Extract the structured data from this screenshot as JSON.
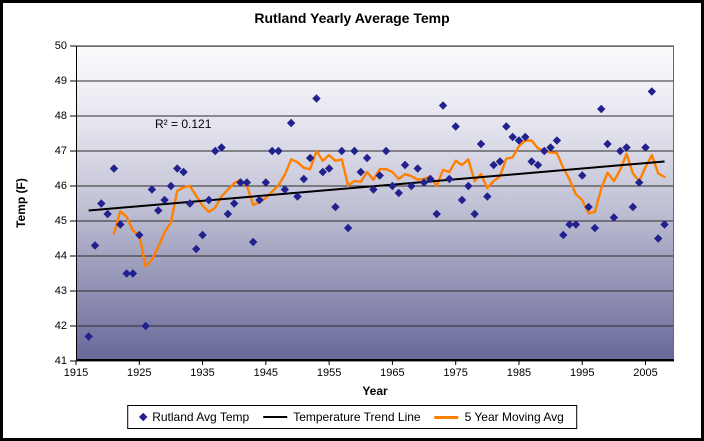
{
  "chart_data": {
    "type": "scatter",
    "title": "Rutland Yearly Average Temp",
    "xlabel": "Year",
    "ylabel": "Temp (F)",
    "annotation": "R² = 0.121",
    "xlim": [
      1915,
      2009.5
    ],
    "ylim": [
      41,
      50
    ],
    "x_ticks": [
      1915,
      1925,
      1935,
      1945,
      1955,
      1965,
      1975,
      1985,
      1995,
      2005
    ],
    "y_ticks": [
      41,
      42,
      43,
      44,
      45,
      46,
      47,
      48,
      49,
      50
    ],
    "grid": "horizontal",
    "legend_position": "bottom",
    "plot_bg_gradient": [
      "#FCFCFE",
      "#E4E4EE",
      "#C2C2D6",
      "#9494B6",
      "#68689A"
    ],
    "series": [
      {
        "name": "Rutland Avg Temp",
        "type": "scatter",
        "marker": "diamond",
        "color": "#22228E",
        "years": [
          1917,
          1918,
          1919,
          1920,
          1921,
          1922,
          1923,
          1924,
          1925,
          1926,
          1927,
          1928,
          1929,
          1930,
          1931,
          1932,
          1933,
          1934,
          1935,
          1936,
          1937,
          1938,
          1939,
          1940,
          1941,
          1942,
          1943,
          1944,
          1945,
          1946,
          1947,
          1948,
          1949,
          1950,
          1951,
          1952,
          1953,
          1954,
          1955,
          1956,
          1957,
          1958,
          1959,
          1960,
          1961,
          1962,
          1963,
          1964,
          1965,
          1966,
          1967,
          1968,
          1969,
          1970,
          1971,
          1972,
          1973,
          1974,
          1975,
          1976,
          1977,
          1978,
          1979,
          1980,
          1981,
          1982,
          1983,
          1984,
          1985,
          1986,
          1987,
          1988,
          1989,
          1990,
          1991,
          1992,
          1993,
          1994,
          1995,
          1996,
          1997,
          1998,
          1999,
          2000,
          2001,
          2002,
          2003,
          2004,
          2005,
          2006,
          2007,
          2008
        ],
        "values": [
          41.7,
          44.3,
          45.5,
          45.2,
          46.5,
          44.9,
          43.5,
          43.5,
          44.6,
          42.0,
          45.9,
          45.3,
          45.6,
          46.0,
          46.5,
          46.4,
          45.5,
          44.2,
          44.6,
          45.6,
          47.0,
          47.1,
          45.2,
          45.5,
          46.1,
          46.1,
          44.4,
          45.6,
          46.1,
          47.0,
          47.0,
          45.9,
          47.8,
          45.7,
          46.2,
          46.8,
          48.5,
          46.4,
          46.5,
          45.4,
          47.0,
          44.8,
          47.0,
          46.4,
          46.8,
          45.9,
          46.3,
          47.0,
          46.0,
          45.8,
          46.6,
          46.0,
          46.5,
          46.1,
          46.2,
          45.2,
          48.3,
          46.2,
          47.7,
          45.6,
          46.0,
          45.2,
          47.2,
          45.7,
          46.6,
          46.7,
          47.7,
          47.4,
          47.3,
          47.4,
          46.7,
          46.6,
          47.0,
          47.1,
          47.3,
          44.6,
          44.9,
          44.9,
          46.3,
          45.4,
          44.8,
          48.2,
          47.2,
          45.1,
          47.0,
          47.1,
          45.4,
          46.1,
          47.1,
          48.7,
          44.5,
          44.9
        ]
      },
      {
        "name": "Temperature Trend Line",
        "type": "line",
        "color": "#000000",
        "points": [
          [
            1917,
            45.3
          ],
          [
            2008,
            46.7
          ]
        ]
      },
      {
        "name": "5 Year Moving Avg",
        "type": "moving_average",
        "color": "#FF8000",
        "window": 5,
        "source": "Rutland Avg Temp"
      }
    ]
  }
}
